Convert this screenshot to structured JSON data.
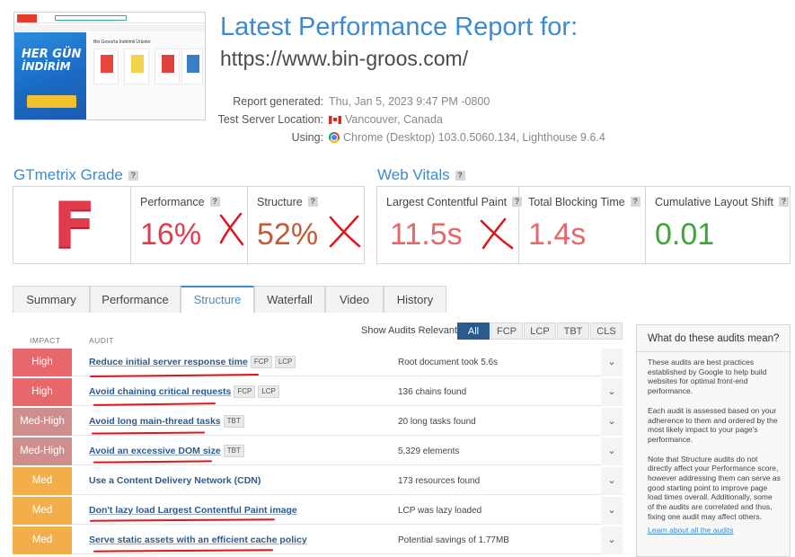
{
  "report": {
    "title": "Latest Performance Report for:",
    "url": "https://www.bin-groos.com/",
    "meta": [
      {
        "label": "Report generated:",
        "value": "Thu, Jan 5, 2023 9:47 PM -0800",
        "icon": ""
      },
      {
        "label": "Test Server Location:",
        "value": "Vancouver, Canada",
        "icon": "canada-flag-icon"
      },
      {
        "label": "Using:",
        "value": "Chrome (Desktop) 103.0.5060.134, Lighthouse 9.6.4",
        "icon": "chrome-icon"
      }
    ]
  },
  "thumbnail": {
    "banner_text_1": "HER GÜN",
    "banner_text_2": "İNDİRİM",
    "panel_title": "Bin Groos'ta İndirimli Ürünler"
  },
  "grade": {
    "title": "GTmetrix Grade",
    "help": "?",
    "letter": "F",
    "performance_label": "Performance",
    "performance_value": "16%",
    "structure_label": "Structure",
    "structure_value": "52%"
  },
  "vitals": {
    "title": "Web Vitals",
    "help": "?",
    "lcp_label": "Largest Contentful Paint",
    "lcp_value": "11.5s",
    "tbt_label": "Total Blocking Time",
    "tbt_value": "1.4s",
    "cls_label": "Cumulative Layout Shift",
    "cls_value": "0.01"
  },
  "tabs": [
    "Summary",
    "Performance",
    "Structure",
    "Waterfall",
    "Video",
    "History"
  ],
  "active_tab": "Structure",
  "filter": {
    "label": "Show Audits Relevant to",
    "options": [
      "All",
      "FCP",
      "LCP",
      "TBT",
      "CLS"
    ],
    "selected": "All"
  },
  "columns": {
    "impact": "IMPACT",
    "audit": "AUDIT"
  },
  "audits": [
    {
      "impact": "High",
      "name": "Reduce initial server response time",
      "tags": [
        "FCP",
        "LCP"
      ],
      "result": "Root document took 5.6s"
    },
    {
      "impact": "High",
      "name": "Avoid chaining critical requests",
      "tags": [
        "FCP",
        "LCP"
      ],
      "result": "136 chains found"
    },
    {
      "impact": "Med-High",
      "name": "Avoid long main-thread tasks",
      "tags": [
        "TBT"
      ],
      "result": "20 long tasks found"
    },
    {
      "impact": "Med-High",
      "name": "Avoid an excessive DOM size",
      "tags": [
        "TBT"
      ],
      "result": "5,329 elements"
    },
    {
      "impact": "Med",
      "name": "Use a Content Delivery Network (CDN)",
      "tags": [],
      "result": "173 resources found"
    },
    {
      "impact": "Med",
      "name": "Don't lazy load Largest Contentful Paint image",
      "tags": [],
      "result": "LCP was lazy loaded"
    },
    {
      "impact": "Med",
      "name": "Serve static assets with an efficient cache policy",
      "tags": [],
      "result": "Potential savings of 1.77MB"
    }
  ],
  "side_panel": {
    "title": "What do these audits mean?",
    "p1": "These audits are best practices established by Google to help build websites for optimal front-end performance.",
    "p2": "Each audit is assessed based on your adherence to them and ordered by the most likely impact to your page's performance.",
    "p3": "Note that Structure audits do not directly affect your Performance score, however addressing them can serve as good starting point to improve page load times overall. Additionally, some of the audits are correlated and thus, fixing one audit may affect others.",
    "link": "Learn about all the audits"
  },
  "colors": {
    "accent": "#3c8bd1",
    "grade_f": "#e23c4c",
    "high": "#e8676a",
    "med_high": "#cf8e8b",
    "med": "#f2ae4b",
    "good": "#3aa635",
    "annotation": "#e0141e"
  }
}
